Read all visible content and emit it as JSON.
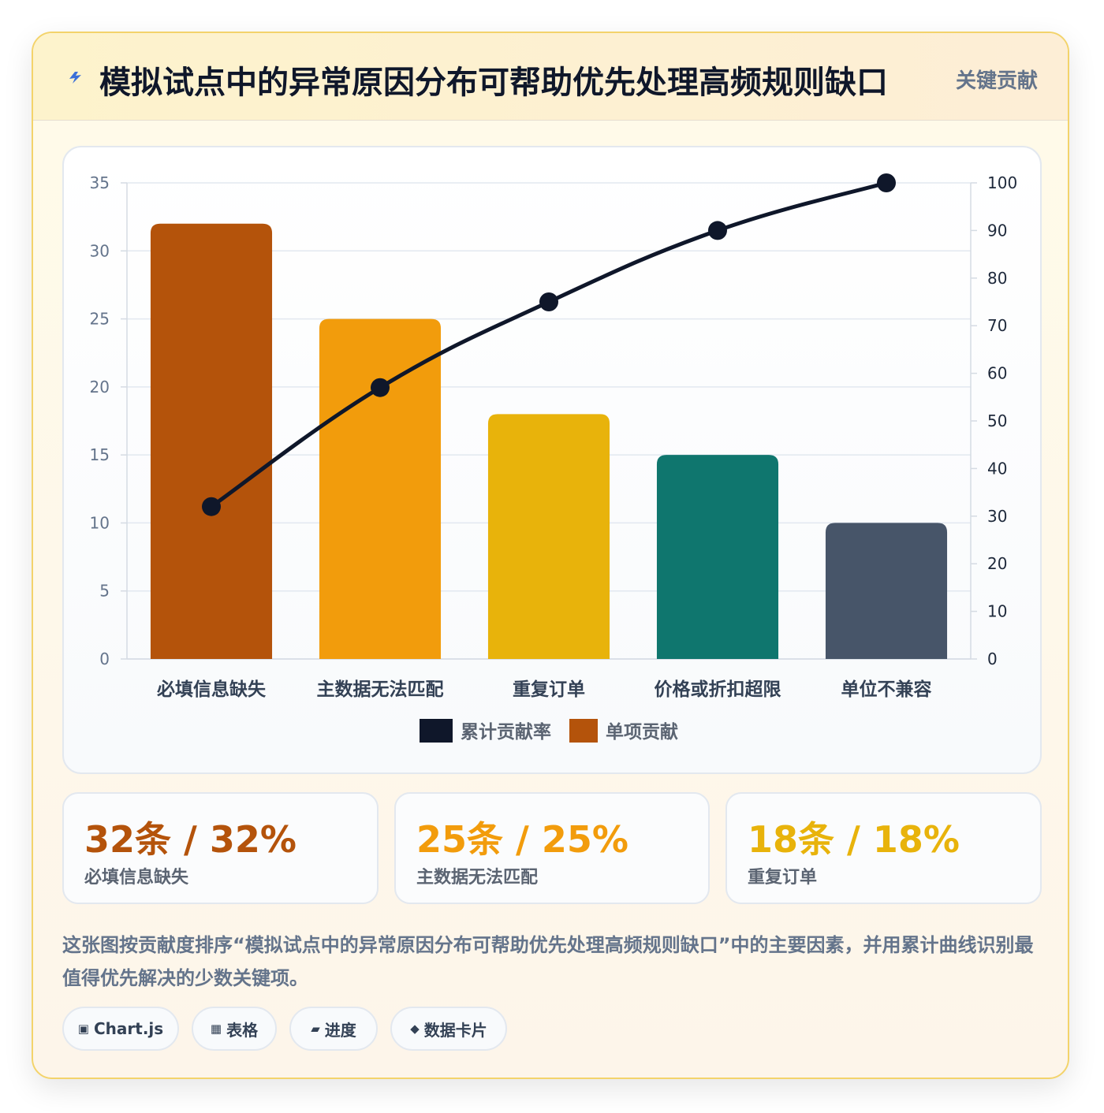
{
  "header": {
    "title": "模拟试点中的异常原因分布可帮助优先处理高频规则缺口",
    "badge": "关键贡献",
    "icon": "lightning-icon"
  },
  "chart_data": {
    "type": "bar",
    "categories": [
      "必填信息缺失",
      "主数据无法匹配",
      "重复订单",
      "价格或折扣超限",
      "单位不兼容"
    ],
    "series": [
      {
        "name": "单项贡献",
        "type": "bar",
        "values": [
          32,
          25,
          18,
          15,
          10
        ],
        "colors": [
          "#b4530b",
          "#f29c0c",
          "#e8b30b",
          "#0f766e",
          "#475569"
        ],
        "axis": "left"
      },
      {
        "name": "累计贡献率",
        "type": "line",
        "values": [
          32,
          57,
          75,
          90,
          100
        ],
        "color": "#0f172a",
        "axis": "right"
      }
    ],
    "ylim": [
      0,
      35
    ],
    "y_ticks": [
      0,
      5,
      10,
      15,
      20,
      25,
      30,
      35
    ],
    "y2lim": [
      0,
      100
    ],
    "y2_ticks": [
      0,
      10,
      20,
      30,
      40,
      50,
      60,
      70,
      80,
      90,
      100
    ],
    "legend": {
      "placement": "bottom",
      "entries": [
        "累计贡献率",
        "单项贡献"
      ]
    },
    "grid": true
  },
  "stats": [
    {
      "value": "32条 / 32%",
      "label": "必填信息缺失",
      "color": "#b4530b"
    },
    {
      "value": "25条 / 25%",
      "label": "主数据无法匹配",
      "color": "#f29c0c"
    },
    {
      "value": "18条 / 18%",
      "label": "重复订单",
      "color": "#e8b30b"
    }
  ],
  "description": "这张图按贡献度排序“模拟试点中的异常原因分布可帮助优先处理高频规则缺口”中的主要因素，并用累计曲线识别最值得优先解决的少数关键项。",
  "tags": [
    {
      "icon": "▣",
      "icon_name": "chart-square-icon",
      "label": "Chart.js"
    },
    {
      "icon": "▦",
      "icon_name": "table-grid-icon",
      "label": "表格"
    },
    {
      "icon": "▰",
      "icon_name": "progress-bar-icon",
      "label": "进度"
    },
    {
      "icon": "◆",
      "icon_name": "diamond-icon",
      "label": "数据卡片"
    }
  ]
}
